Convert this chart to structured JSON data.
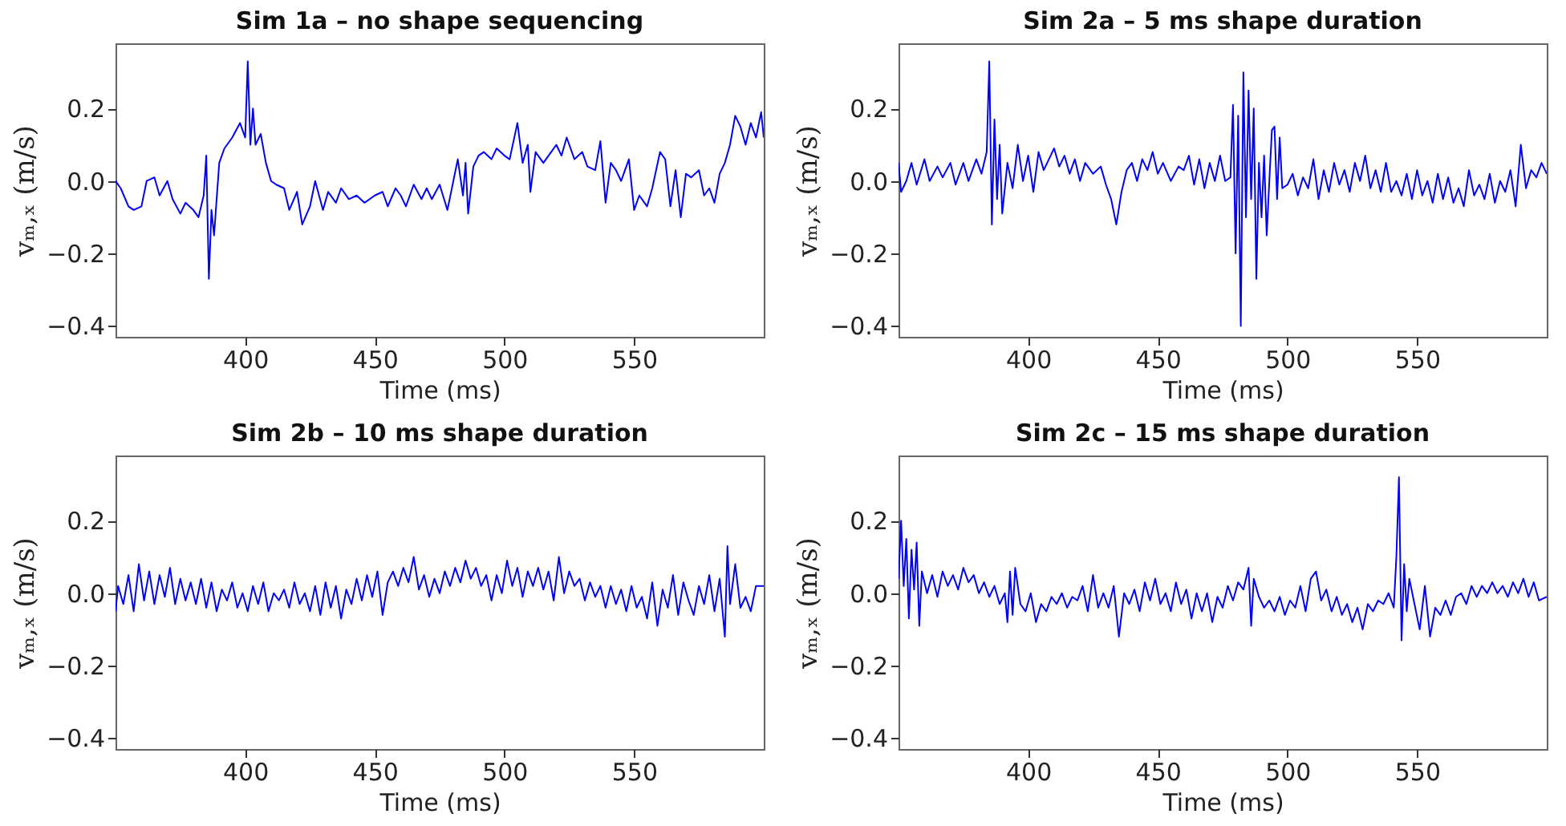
{
  "chart_data": [
    {
      "type": "line",
      "title": "Sim 1a – no shape sequencing",
      "xlabel": "Time (ms)",
      "ylabel": "vₘ,ₓ (m/s)",
      "xlim": [
        350,
        600
      ],
      "ylim": [
        -0.43,
        0.38
      ],
      "xticks": [
        400,
        450,
        500,
        550
      ],
      "yticks": [
        {
          "value": -0.4,
          "label": "−0.4"
        },
        {
          "value": -0.2,
          "label": "−0.2"
        },
        {
          "value": 0,
          "label": "0.0"
        },
        {
          "value": 0.2,
          "label": "0.2"
        }
      ],
      "grid": false,
      "x": [
        350,
        352,
        355,
        357,
        360,
        362,
        365,
        367,
        370,
        372,
        375,
        377,
        380,
        382,
        384,
        385,
        386,
        387,
        388,
        390,
        392,
        395,
        398,
        400,
        401,
        402,
        403,
        404,
        406,
        408,
        410,
        412,
        415,
        417,
        420,
        422,
        425,
        427,
        430,
        432,
        435,
        437,
        440,
        443,
        446,
        450,
        453,
        455,
        458,
        460,
        462,
        465,
        468,
        470,
        472,
        475,
        478,
        480,
        482,
        484,
        485,
        486,
        488,
        490,
        492,
        495,
        497,
        500,
        502,
        505,
        507,
        509,
        510,
        512,
        515,
        518,
        520,
        522,
        524,
        527,
        530,
        532,
        535,
        537,
        539,
        541,
        543,
        545,
        548,
        550,
        552,
        555,
        557,
        560,
        562,
        564,
        566,
        568,
        570,
        572,
        575,
        577,
        579,
        581,
        583,
        585,
        587,
        589,
        591,
        593,
        595,
        597,
        599,
        600
      ],
      "series": [
        {
          "color": "#0000ff",
          "values": [
            0.0,
            -0.02,
            -0.07,
            -0.08,
            -0.07,
            0.0,
            0.01,
            -0.04,
            0.0,
            -0.05,
            -0.09,
            -0.06,
            -0.08,
            -0.1,
            -0.04,
            0.07,
            -0.27,
            -0.08,
            -0.15,
            0.05,
            0.09,
            0.12,
            0.16,
            0.12,
            0.33,
            0.1,
            0.2,
            0.1,
            0.13,
            0.05,
            0.0,
            -0.01,
            -0.02,
            -0.08,
            -0.03,
            -0.12,
            -0.07,
            0.0,
            -0.08,
            -0.03,
            -0.06,
            -0.02,
            -0.05,
            -0.04,
            -0.06,
            -0.04,
            -0.03,
            -0.07,
            -0.02,
            -0.04,
            -0.07,
            -0.01,
            -0.05,
            -0.02,
            -0.05,
            -0.01,
            -0.08,
            -0.01,
            0.06,
            -0.04,
            0.05,
            -0.09,
            0.04,
            0.07,
            0.08,
            0.06,
            0.09,
            0.07,
            0.06,
            0.16,
            0.05,
            0.1,
            -0.03,
            0.08,
            0.05,
            0.08,
            0.1,
            0.07,
            0.12,
            0.06,
            0.08,
            0.04,
            0.03,
            0.11,
            -0.06,
            0.05,
            0.03,
            0.0,
            0.06,
            -0.08,
            -0.04,
            -0.07,
            -0.02,
            0.08,
            0.06,
            -0.07,
            0.03,
            -0.1,
            0.02,
            0.01,
            0.03,
            -0.04,
            -0.02,
            -0.06,
            0.02,
            0.05,
            0.1,
            0.18,
            0.15,
            0.1,
            0.16,
            0.12,
            0.19,
            0.12
          ]
        }
      ]
    },
    {
      "type": "line",
      "title": "Sim 2a – 5 ms shape duration",
      "xlabel": "Time (ms)",
      "ylabel": "vₘ,ₓ (m/s)",
      "xlim": [
        350,
        600
      ],
      "ylim": [
        -0.43,
        0.38
      ],
      "xticks": [
        400,
        450,
        500,
        550
      ],
      "yticks": [
        {
          "value": -0.4,
          "label": "−0.4"
        },
        {
          "value": -0.2,
          "label": "−0.2"
        },
        {
          "value": 0,
          "label": "0.0"
        },
        {
          "value": 0.2,
          "label": "0.2"
        }
      ],
      "grid": false,
      "x": [
        350,
        351,
        353,
        355,
        357,
        360,
        362,
        365,
        367,
        370,
        372,
        375,
        377,
        380,
        382,
        384,
        385,
        386,
        387,
        388,
        389,
        390,
        392,
        394,
        396,
        398,
        400,
        402,
        404,
        406,
        408,
        410,
        412,
        414,
        416,
        418,
        420,
        422,
        425,
        428,
        430,
        432,
        434,
        436,
        438,
        440,
        442,
        444,
        446,
        448,
        450,
        452,
        455,
        458,
        460,
        462,
        464,
        466,
        468,
        470,
        472,
        474,
        476,
        478,
        479,
        480,
        481,
        482,
        483,
        484,
        485,
        486,
        487,
        488,
        489,
        490,
        491,
        492,
        493,
        494,
        495,
        496,
        497,
        498,
        500,
        502,
        504,
        506,
        508,
        510,
        512,
        514,
        516,
        518,
        520,
        522,
        524,
        526,
        528,
        530,
        532,
        534,
        536,
        538,
        540,
        542,
        544,
        546,
        548,
        550,
        552,
        554,
        556,
        558,
        560,
        562,
        564,
        566,
        568,
        570,
        572,
        574,
        576,
        578,
        580,
        582,
        584,
        586,
        588,
        590,
        592,
        594,
        596,
        598,
        600
      ],
      "series": [
        {
          "color": "#0000ff",
          "values": [
            0.05,
            -0.03,
            0.0,
            0.05,
            -0.01,
            0.06,
            0.0,
            0.04,
            0.01,
            0.05,
            -0.01,
            0.05,
            0.0,
            0.06,
            0.02,
            0.08,
            0.33,
            -0.12,
            0.17,
            -0.05,
            0.1,
            -0.09,
            0.05,
            -0.02,
            0.1,
            0.0,
            0.07,
            -0.03,
            0.08,
            0.03,
            0.06,
            0.09,
            0.04,
            0.07,
            0.02,
            0.06,
            0.0,
            0.05,
            0.02,
            0.04,
            -0.01,
            -0.05,
            -0.12,
            -0.03,
            0.03,
            0.05,
            0.0,
            0.06,
            0.03,
            0.08,
            0.02,
            0.05,
            0.0,
            0.04,
            0.03,
            0.07,
            -0.01,
            0.06,
            -0.02,
            0.05,
            0.0,
            0.07,
            0.0,
            0.01,
            0.21,
            -0.2,
            0.18,
            -0.4,
            0.3,
            -0.1,
            0.25,
            -0.05,
            0.2,
            -0.27,
            0.05,
            -0.1,
            0.07,
            -0.15,
            0.0,
            0.14,
            0.15,
            -0.05,
            0.12,
            -0.02,
            -0.01,
            0.02,
            -0.04,
            0.01,
            -0.02,
            0.06,
            -0.05,
            0.03,
            -0.03,
            0.05,
            -0.01,
            0.03,
            -0.03,
            0.05,
            0.0,
            0.07,
            -0.02,
            0.03,
            -0.03,
            0.05,
            -0.03,
            0.0,
            -0.04,
            0.02,
            -0.05,
            0.03,
            -0.04,
            0.0,
            -0.06,
            0.02,
            -0.05,
            0.01,
            -0.06,
            -0.02,
            -0.07,
            0.03,
            -0.04,
            -0.01,
            -0.05,
            0.02,
            -0.06,
            0.0,
            -0.03,
            0.03,
            -0.07,
            0.1,
            -0.02,
            0.03,
            0.01,
            0.05,
            0.02
          ]
        }
      ]
    },
    {
      "type": "line",
      "title": "Sim 2b – 10 ms shape duration",
      "xlabel": "Time (ms)",
      "ylabel": "vₘ,ₓ (m/s)",
      "xlim": [
        350,
        600
      ],
      "ylim": [
        -0.43,
        0.38
      ],
      "xticks": [
        400,
        450,
        500,
        550
      ],
      "yticks": [
        {
          "value": -0.4,
          "label": "−0.4"
        },
        {
          "value": -0.2,
          "label": "−0.2"
        },
        {
          "value": 0,
          "label": "0.0"
        },
        {
          "value": 0.2,
          "label": "0.2"
        }
      ],
      "grid": false,
      "x": [
        350,
        351,
        353,
        355,
        357,
        359,
        361,
        363,
        365,
        367,
        369,
        371,
        373,
        375,
        377,
        379,
        381,
        383,
        385,
        387,
        389,
        391,
        393,
        395,
        397,
        399,
        401,
        403,
        405,
        407,
        409,
        411,
        413,
        415,
        417,
        419,
        421,
        423,
        425,
        427,
        429,
        431,
        433,
        435,
        437,
        439,
        441,
        443,
        445,
        447,
        449,
        451,
        453,
        455,
        457,
        459,
        461,
        463,
        465,
        467,
        469,
        471,
        473,
        475,
        477,
        479,
        481,
        483,
        485,
        487,
        489,
        491,
        493,
        495,
        497,
        499,
        501,
        503,
        505,
        507,
        509,
        511,
        513,
        515,
        517,
        519,
        521,
        523,
        525,
        527,
        529,
        531,
        533,
        535,
        537,
        539,
        541,
        543,
        545,
        547,
        549,
        551,
        553,
        555,
        557,
        559,
        561,
        563,
        565,
        567,
        569,
        571,
        573,
        575,
        577,
        579,
        581,
        583,
        585,
        586,
        587,
        589,
        591,
        593,
        595,
        597,
        600
      ],
      "series": [
        {
          "color": "#0000ff",
          "values": [
            -0.05,
            0.02,
            -0.03,
            0.05,
            -0.05,
            0.08,
            -0.02,
            0.06,
            -0.03,
            0.05,
            -0.01,
            0.07,
            -0.03,
            0.04,
            -0.02,
            0.03,
            -0.03,
            0.04,
            -0.04,
            0.03,
            -0.05,
            0.01,
            -0.02,
            0.03,
            -0.04,
            0.0,
            -0.05,
            0.02,
            -0.03,
            0.03,
            -0.05,
            0.0,
            -0.02,
            0.01,
            -0.04,
            0.03,
            -0.03,
            0.0,
            -0.05,
            0.02,
            -0.06,
            0.03,
            -0.04,
            0.02,
            -0.07,
            0.01,
            -0.03,
            0.04,
            -0.02,
            0.05,
            -0.01,
            0.06,
            -0.06,
            0.03,
            0.06,
            0.02,
            0.07,
            0.03,
            0.1,
            0.01,
            0.05,
            -0.01,
            0.04,
            0.0,
            0.06,
            0.02,
            0.07,
            0.03,
            0.09,
            0.04,
            0.07,
            0.02,
            0.05,
            -0.02,
            0.05,
            0.0,
            0.09,
            0.02,
            0.07,
            -0.01,
            0.06,
            0.02,
            0.07,
            0.01,
            0.06,
            -0.02,
            0.1,
            0.0,
            0.06,
            0.02,
            0.04,
            -0.02,
            0.03,
            -0.01,
            0.02,
            -0.04,
            0.02,
            -0.03,
            0.01,
            -0.05,
            0.02,
            -0.04,
            -0.01,
            -0.07,
            0.03,
            -0.09,
            0.01,
            -0.04,
            0.05,
            -0.06,
            0.03,
            -0.02,
            -0.06,
            0.02,
            -0.03,
            0.05,
            -0.05,
            0.04,
            -0.12,
            0.13,
            -0.03,
            0.08,
            -0.04,
            -0.01,
            -0.05,
            0.02,
            0.02
          ]
        }
      ]
    },
    {
      "type": "line",
      "title": "Sim 2c – 15 ms shape duration",
      "xlabel": "Time (ms)",
      "ylabel": "vₘ,ₓ (m/s)",
      "xlim": [
        350,
        600
      ],
      "ylim": [
        -0.43,
        0.38
      ],
      "xticks": [
        400,
        450,
        500,
        550
      ],
      "yticks": [
        {
          "value": -0.4,
          "label": "−0.4"
        },
        {
          "value": -0.2,
          "label": "−0.2"
        },
        {
          "value": 0,
          "label": "0.0"
        },
        {
          "value": 0.2,
          "label": "0.2"
        }
      ],
      "grid": false,
      "x": [
        350,
        351,
        352,
        353,
        354,
        355,
        356,
        357,
        358,
        359,
        361,
        363,
        365,
        367,
        369,
        371,
        373,
        375,
        377,
        379,
        381,
        383,
        385,
        387,
        389,
        391,
        392,
        393,
        394,
        395,
        397,
        399,
        401,
        403,
        405,
        407,
        409,
        411,
        413,
        415,
        417,
        419,
        421,
        423,
        425,
        427,
        429,
        431,
        433,
        435,
        437,
        439,
        441,
        443,
        445,
        447,
        449,
        451,
        453,
        455,
        457,
        459,
        461,
        463,
        465,
        467,
        469,
        471,
        473,
        475,
        477,
        479,
        481,
        483,
        485,
        486,
        487,
        489,
        491,
        493,
        495,
        497,
        499,
        501,
        503,
        505,
        507,
        509,
        511,
        513,
        515,
        517,
        519,
        521,
        523,
        525,
        527,
        529,
        531,
        533,
        535,
        537,
        539,
        541,
        542,
        543,
        544,
        545,
        546,
        547,
        549,
        551,
        553,
        555,
        557,
        559,
        561,
        563,
        565,
        567,
        569,
        571,
        573,
        575,
        577,
        579,
        581,
        583,
        585,
        587,
        589,
        591,
        593,
        595,
        597,
        600
      ],
      "series": [
        {
          "color": "#0000ff",
          "values": [
            0.04,
            0.2,
            0.02,
            0.15,
            -0.07,
            0.12,
            0.01,
            0.14,
            -0.09,
            0.06,
            0.0,
            0.05,
            -0.01,
            0.06,
            0.02,
            0.05,
            0.01,
            0.07,
            0.03,
            0.05,
            0.0,
            0.03,
            -0.01,
            0.02,
            -0.03,
            0.0,
            -0.08,
            0.06,
            -0.06,
            0.07,
            -0.03,
            -0.05,
            0.0,
            -0.08,
            -0.03,
            -0.05,
            -0.01,
            -0.03,
            0.0,
            -0.04,
            -0.01,
            -0.02,
            0.02,
            -0.05,
            0.05,
            -0.04,
            0.0,
            -0.04,
            0.02,
            -0.12,
            0.0,
            -0.03,
            0.01,
            -0.05,
            0.03,
            -0.02,
            0.04,
            -0.03,
            0.0,
            -0.05,
            0.03,
            -0.03,
            0.01,
            -0.07,
            0.0,
            -0.05,
            0.0,
            -0.08,
            -0.01,
            -0.04,
            0.02,
            -0.02,
            0.03,
            0.01,
            0.07,
            -0.09,
            0.04,
            -0.01,
            -0.04,
            -0.02,
            -0.05,
            -0.01,
            -0.06,
            -0.02,
            -0.04,
            0.02,
            -0.05,
            0.04,
            0.06,
            -0.02,
            0.01,
            -0.05,
            -0.01,
            -0.06,
            -0.03,
            -0.08,
            -0.04,
            -0.1,
            -0.03,
            -0.05,
            -0.02,
            -0.03,
            0.0,
            -0.04,
            0.1,
            0.32,
            -0.13,
            0.08,
            -0.05,
            0.04,
            -0.03,
            -0.1,
            0.02,
            -0.12,
            -0.04,
            -0.06,
            -0.02,
            -0.06,
            -0.01,
            0.0,
            -0.03,
            0.02,
            -0.01,
            0.02,
            0.0,
            0.03,
            0.0,
            0.02,
            -0.01,
            0.03,
            0.0,
            0.04,
            -0.01,
            0.03,
            -0.02,
            -0.01
          ]
        }
      ]
    }
  ]
}
